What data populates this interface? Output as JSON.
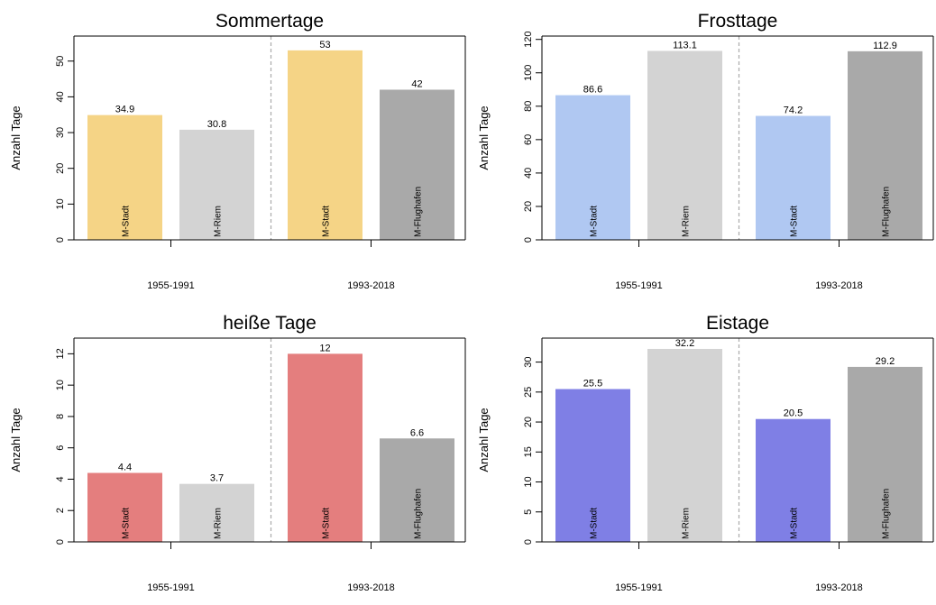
{
  "chart_data": [
    {
      "type": "bar",
      "title": "Sommertage",
      "ylabel": "Anzahl Tage",
      "ylim": [
        0,
        57
      ],
      "yticks": [
        0,
        10,
        20,
        30,
        40,
        50
      ],
      "groups": [
        "1955-1991",
        "1993-2018"
      ],
      "bars": [
        {
          "group": "1955-1991",
          "label": "M-Stadt",
          "value": 34.9,
          "value_label": "34.9",
          "color": "#F5D486"
        },
        {
          "group": "1955-1991",
          "label": "M-Riem",
          "value": 30.8,
          "value_label": "30.8",
          "color": "#D3D3D3"
        },
        {
          "group": "1993-2018",
          "label": "M-Stadt",
          "value": 53,
          "value_label": "53",
          "color": "#F5D486"
        },
        {
          "group": "1993-2018",
          "label": "M-Flughafen",
          "value": 42,
          "value_label": "42",
          "color": "#A9A9A9"
        }
      ]
    },
    {
      "type": "bar",
      "title": "Frosttage",
      "ylabel": "Anzahl Tage",
      "ylim": [
        0,
        122
      ],
      "yticks": [
        0,
        20,
        40,
        60,
        80,
        100,
        120
      ],
      "groups": [
        "1955-1991",
        "1993-2018"
      ],
      "bars": [
        {
          "group": "1955-1991",
          "label": "M-Stadt",
          "value": 86.6,
          "value_label": "86.6",
          "color": "#B0C8F2"
        },
        {
          "group": "1955-1991",
          "label": "M-Riem",
          "value": 113.1,
          "value_label": "113.1",
          "color": "#D3D3D3"
        },
        {
          "group": "1993-2018",
          "label": "M-Stadt",
          "value": 74.2,
          "value_label": "74.2",
          "color": "#B0C8F2"
        },
        {
          "group": "1993-2018",
          "label": "M-Flughafen",
          "value": 112.9,
          "value_label": "112.9",
          "color": "#A9A9A9"
        }
      ]
    },
    {
      "type": "bar",
      "title": "heiße Tage",
      "ylabel": "Anzahl Tage",
      "ylim": [
        0,
        13
      ],
      "yticks": [
        0,
        2,
        4,
        6,
        8,
        10,
        12
      ],
      "groups": [
        "1955-1991",
        "1993-2018"
      ],
      "bars": [
        {
          "group": "1955-1991",
          "label": "M-Stadt",
          "value": 4.4,
          "value_label": "4.4",
          "color": "#E47E7E"
        },
        {
          "group": "1955-1991",
          "label": "M-Riem",
          "value": 3.7,
          "value_label": "3.7",
          "color": "#D3D3D3"
        },
        {
          "group": "1993-2018",
          "label": "M-Stadt",
          "value": 12,
          "value_label": "12",
          "color": "#E47E7E"
        },
        {
          "group": "1993-2018",
          "label": "M-Flughafen",
          "value": 6.6,
          "value_label": "6.6",
          "color": "#A9A9A9"
        }
      ]
    },
    {
      "type": "bar",
      "title": "Eistage",
      "ylabel": "Anzahl Tage",
      "ylim": [
        0,
        34
      ],
      "yticks": [
        0,
        5,
        10,
        15,
        20,
        25,
        30
      ],
      "groups": [
        "1955-1991",
        "1993-2018"
      ],
      "bars": [
        {
          "group": "1955-1991",
          "label": "M-Stadt",
          "value": 25.5,
          "value_label": "25.5",
          "color": "#7F7FE5"
        },
        {
          "group": "1955-1991",
          "label": "M-Riem",
          "value": 32.2,
          "value_label": "32.2",
          "color": "#D3D3D3"
        },
        {
          "group": "1993-2018",
          "label": "M-Stadt",
          "value": 20.5,
          "value_label": "20.5",
          "color": "#7F7FE5"
        },
        {
          "group": "1993-2018",
          "label": "M-Flughafen",
          "value": 29.2,
          "value_label": "29.2",
          "color": "#A9A9A9"
        }
      ]
    }
  ]
}
